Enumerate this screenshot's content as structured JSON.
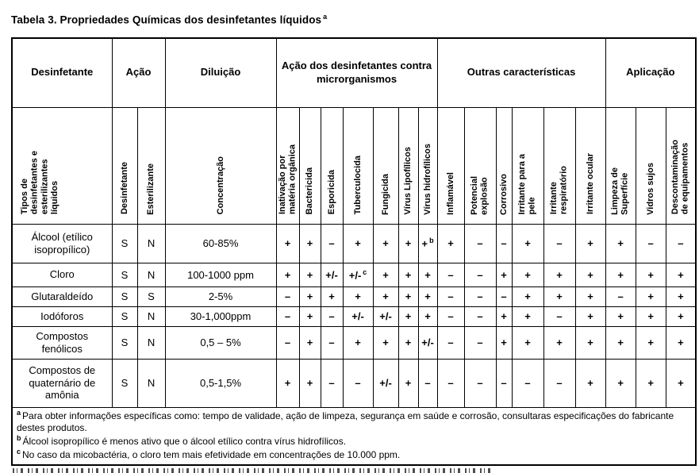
{
  "title": {
    "text": "Tabela 3. Propriedades Químicas dos desinfetantes líquidos",
    "sup": "a"
  },
  "table": {
    "group_headers": [
      {
        "label": "Desinfetante",
        "colspan": 1
      },
      {
        "label": "Ação",
        "colspan": 2
      },
      {
        "label": "Diluição",
        "colspan": 1
      },
      {
        "label": "Ação dos desinfetantes contra microrganismos",
        "colspan": 7
      },
      {
        "label": "Outras características",
        "colspan": 6
      },
      {
        "label": "Aplicação",
        "colspan": 3
      }
    ],
    "column_headers": [
      "Tipos de\ndesinfetantes e\nesterilizantes\nlíquidos",
      "Desinfetante",
      "Esterilizante",
      "Concentração",
      "Inativação por\nmatéria orgânica",
      "Bactericida",
      "Esporicida",
      "Tuberculocida",
      "Fungicida",
      "Vírus Lipofílicos",
      "Vírus hidrofílicos",
      "Inflamável",
      "Potencial\nexplosão",
      "Corrosivo",
      "Irritante para a\npele",
      "Irritante\nrespiratório",
      "Irritante ocular",
      "Limpeza de\nSuperfície",
      "Vidros sujos",
      "Descontaminação\nde equipamentos"
    ],
    "rows": [
      {
        "name": "Álcool (etílico isopropílico)",
        "cells": [
          "S",
          "N",
          "60-85%",
          "+",
          "+",
          "–",
          "+",
          "+",
          "+",
          "+^b",
          "+",
          "–",
          "–",
          "+",
          "–",
          "+",
          "+",
          "–",
          "–"
        ]
      },
      {
        "name": "Cloro",
        "cells": [
          "S",
          "N",
          "100-1000 ppm",
          "+",
          "+",
          "+/-",
          "+/-^c",
          "+",
          "+",
          "+",
          "–",
          "–",
          "+",
          "+",
          "+",
          "+",
          "+",
          "+",
          "+"
        ]
      },
      {
        "name": "Glutaraldeído",
        "cells": [
          "S",
          "S",
          "2-5%",
          "–",
          "+",
          "+",
          "+",
          "+",
          "+",
          "+",
          "–",
          "–",
          "–",
          "+",
          "+",
          "+",
          "–",
          "+",
          "+"
        ]
      },
      {
        "name": "Iodóforos",
        "cells": [
          "S",
          "N",
          "30-1,000ppm",
          "–",
          "+",
          "–",
          "+/-",
          "+/-",
          "+",
          "+",
          "–",
          "–",
          "+",
          "+",
          "–",
          "+",
          "+",
          "+",
          "+"
        ]
      },
      {
        "name": "Compostos fenólicos",
        "cells": [
          "S",
          "N",
          "0,5 – 5%",
          "–",
          "+",
          "–",
          "+",
          "+",
          "+",
          "+/-",
          "–",
          "–",
          "+",
          "+",
          "+",
          "+",
          "+",
          "+",
          "+"
        ]
      },
      {
        "name": "Compostos de quaternário de amônia",
        "cells": [
          "S",
          "N",
          "0,5-1,5%",
          "+",
          "+",
          "–",
          "–",
          "+/-",
          "+",
          "–",
          "–",
          "–",
          "–",
          "–",
          "–",
          "+",
          "+",
          "+",
          "+"
        ]
      }
    ],
    "footnotes": [
      {
        "sup": "a",
        "text": "Para obter informações específicas como: tempo de validade, ação de limpeza, segurança em saúde e corrosão, consultaras especificações do fabricante destes produtos."
      },
      {
        "sup": "b",
        "text": "Álcool isopropílico é menos ativo que o álcool etílico contra vírus hidrofílicos."
      },
      {
        "sup": "c",
        "text": "No caso da micobactéria, o cloro tem mais efetividade em concentrações de 10.000 ppm."
      }
    ]
  }
}
